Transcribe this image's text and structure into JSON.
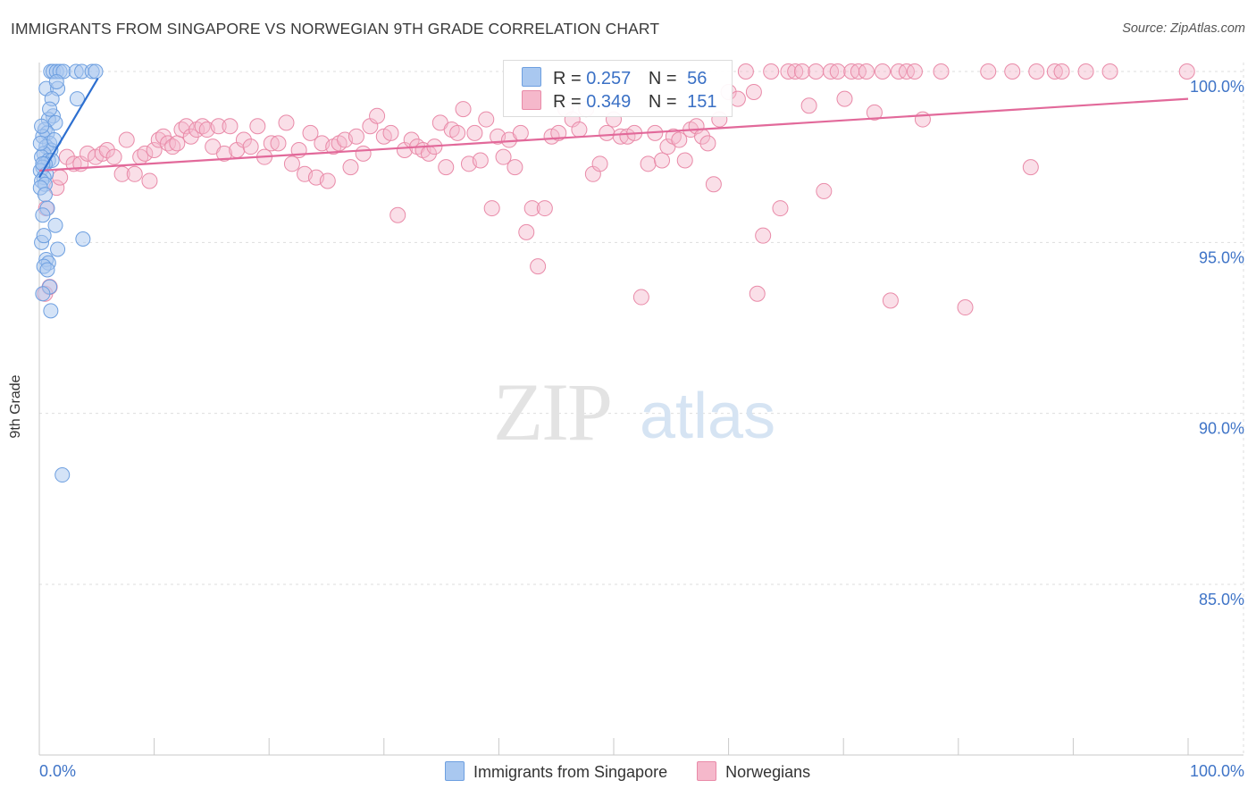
{
  "header": {
    "title": "IMMIGRANTS FROM SINGAPORE VS NORWEGIAN 9TH GRADE CORRELATION CHART",
    "source": "Source: ZipAtlas.com"
  },
  "watermark": {
    "zip": "ZIP",
    "atlas": "atlas"
  },
  "colors": {
    "blue_fill": "#a9c8f0",
    "blue_stroke": "#6d9fe0",
    "blue_line": "#2d6fd0",
    "pink_fill": "#f5b8cb",
    "pink_stroke": "#e98aa8",
    "pink_line": "#e2699a",
    "tick_label": "#3f74c7",
    "grid": "#dddddd"
  },
  "stats_legend": {
    "rows": [
      {
        "r_label": "R =",
        "r_value": "0.257",
        "n_label": "N =",
        "n_value": "56"
      },
      {
        "r_label": "R =",
        "r_value": "0.349",
        "n_label": "N =",
        "n_value": "151"
      }
    ]
  },
  "chart_data": {
    "type": "scatter",
    "title": "IMMIGRANTS FROM SINGAPORE VS NORWEGIAN 9TH GRADE CORRELATION CHART",
    "xlabel": "",
    "ylabel": "9th Grade",
    "xlim": [
      0,
      100
    ],
    "ylim": [
      80.5,
      100.3
    ],
    "x_tick_labels": [
      "0.0%",
      "100.0%"
    ],
    "y_ticks": [
      100,
      95,
      90,
      85
    ],
    "y_tick_labels": [
      "100.0%",
      "95.0%",
      "90.0%",
      "85.0%"
    ],
    "grid": true,
    "legend_position": "bottom",
    "series": [
      {
        "name": "Immigrants from Singapore",
        "color": "#a9c8f0",
        "trend": {
          "x": [
            0.0,
            5.1
          ],
          "y": [
            96.9,
            99.8
          ]
        },
        "points": [
          {
            "x": 1.0,
            "y": 100
          },
          {
            "x": 1.2,
            "y": 100
          },
          {
            "x": 1.5,
            "y": 100
          },
          {
            "x": 1.8,
            "y": 100
          },
          {
            "x": 2.1,
            "y": 100
          },
          {
            "x": 3.2,
            "y": 100
          },
          {
            "x": 3.7,
            "y": 100
          },
          {
            "x": 4.6,
            "y": 100
          },
          {
            "x": 4.9,
            "y": 100
          },
          {
            "x": 0.6,
            "y": 99.5
          },
          {
            "x": 1.6,
            "y": 99.5
          },
          {
            "x": 1.1,
            "y": 99.2
          },
          {
            "x": 3.3,
            "y": 99.2
          },
          {
            "x": 1.2,
            "y": 98.7
          },
          {
            "x": 0.8,
            "y": 98.6
          },
          {
            "x": 1.4,
            "y": 98.5
          },
          {
            "x": 0.5,
            "y": 98.3
          },
          {
            "x": 0.7,
            "y": 98.2
          },
          {
            "x": 0.3,
            "y": 98.1
          },
          {
            "x": 0.9,
            "y": 97.9
          },
          {
            "x": 0.6,
            "y": 97.8
          },
          {
            "x": 1.0,
            "y": 97.7
          },
          {
            "x": 0.4,
            "y": 97.6
          },
          {
            "x": 0.2,
            "y": 97.5
          },
          {
            "x": 0.8,
            "y": 97.4
          },
          {
            "x": 1.1,
            "y": 97.4
          },
          {
            "x": 0.5,
            "y": 97.3
          },
          {
            "x": 0.3,
            "y": 97.2
          },
          {
            "x": 0.1,
            "y": 97.1
          },
          {
            "x": 0.6,
            "y": 97.0
          },
          {
            "x": 0.4,
            "y": 96.9
          },
          {
            "x": 0.2,
            "y": 96.8
          },
          {
            "x": 0.5,
            "y": 96.7
          },
          {
            "x": 0.1,
            "y": 96.6
          },
          {
            "x": 0.7,
            "y": 96.0
          },
          {
            "x": 0.3,
            "y": 95.8
          },
          {
            "x": 1.4,
            "y": 95.5
          },
          {
            "x": 3.8,
            "y": 95.1
          },
          {
            "x": 0.2,
            "y": 95.0
          },
          {
            "x": 1.6,
            "y": 94.8
          },
          {
            "x": 0.6,
            "y": 94.5
          },
          {
            "x": 0.8,
            "y": 94.4
          },
          {
            "x": 0.4,
            "y": 94.3
          },
          {
            "x": 0.7,
            "y": 94.2
          },
          {
            "x": 0.9,
            "y": 93.7
          },
          {
            "x": 0.3,
            "y": 93.5
          },
          {
            "x": 1.0,
            "y": 93.0
          },
          {
            "x": 2.0,
            "y": 88.2
          },
          {
            "x": 0.1,
            "y": 97.9
          },
          {
            "x": 0.9,
            "y": 98.9
          },
          {
            "x": 0.3,
            "y": 97.3
          },
          {
            "x": 1.3,
            "y": 98.0
          },
          {
            "x": 0.5,
            "y": 96.4
          },
          {
            "x": 0.2,
            "y": 98.4
          },
          {
            "x": 0.4,
            "y": 95.2
          },
          {
            "x": 1.5,
            "y": 99.7
          }
        ]
      },
      {
        "name": "Norwegians",
        "color": "#f5b8cb",
        "trend": {
          "x": [
            0.0,
            100.0
          ],
          "y": [
            97.1,
            99.2
          ]
        },
        "points": [
          {
            "x": 0.5,
            "y": 93.5
          },
          {
            "x": 0.9,
            "y": 93.7
          },
          {
            "x": 0.6,
            "y": 96.0
          },
          {
            "x": 1.5,
            "y": 96.6
          },
          {
            "x": 1.8,
            "y": 96.9
          },
          {
            "x": 2.4,
            "y": 97.5
          },
          {
            "x": 3.0,
            "y": 97.3
          },
          {
            "x": 3.6,
            "y": 97.3
          },
          {
            "x": 4.2,
            "y": 97.6
          },
          {
            "x": 4.9,
            "y": 97.5
          },
          {
            "x": 5.5,
            "y": 97.6
          },
          {
            "x": 5.9,
            "y": 97.7
          },
          {
            "x": 6.5,
            "y": 97.5
          },
          {
            "x": 7.2,
            "y": 97.0
          },
          {
            "x": 7.6,
            "y": 98.0
          },
          {
            "x": 8.3,
            "y": 97.0
          },
          {
            "x": 8.8,
            "y": 97.5
          },
          {
            "x": 9.2,
            "y": 97.6
          },
          {
            "x": 9.6,
            "y": 96.8
          },
          {
            "x": 10.0,
            "y": 97.7
          },
          {
            "x": 10.4,
            "y": 98.0
          },
          {
            "x": 10.8,
            "y": 98.1
          },
          {
            "x": 11.2,
            "y": 97.9
          },
          {
            "x": 11.6,
            "y": 97.8
          },
          {
            "x": 12.0,
            "y": 97.9
          },
          {
            "x": 12.4,
            "y": 98.3
          },
          {
            "x": 12.8,
            "y": 98.4
          },
          {
            "x": 13.2,
            "y": 98.1
          },
          {
            "x": 13.7,
            "y": 98.3
          },
          {
            "x": 14.2,
            "y": 98.4
          },
          {
            "x": 14.6,
            "y": 98.3
          },
          {
            "x": 15.1,
            "y": 97.8
          },
          {
            "x": 15.6,
            "y": 98.4
          },
          {
            "x": 16.1,
            "y": 97.6
          },
          {
            "x": 16.6,
            "y": 98.4
          },
          {
            "x": 17.2,
            "y": 97.7
          },
          {
            "x": 17.8,
            "y": 98.0
          },
          {
            "x": 18.4,
            "y": 97.8
          },
          {
            "x": 19.0,
            "y": 98.4
          },
          {
            "x": 19.6,
            "y": 97.5
          },
          {
            "x": 20.2,
            "y": 97.9
          },
          {
            "x": 20.8,
            "y": 97.9
          },
          {
            "x": 21.5,
            "y": 98.5
          },
          {
            "x": 22.0,
            "y": 97.3
          },
          {
            "x": 22.6,
            "y": 97.7
          },
          {
            "x": 23.1,
            "y": 97.0
          },
          {
            "x": 23.6,
            "y": 98.2
          },
          {
            "x": 24.1,
            "y": 96.9
          },
          {
            "x": 24.6,
            "y": 97.9
          },
          {
            "x": 25.1,
            "y": 96.8
          },
          {
            "x": 25.6,
            "y": 97.8
          },
          {
            "x": 26.1,
            "y": 97.9
          },
          {
            "x": 26.6,
            "y": 98.0
          },
          {
            "x": 27.1,
            "y": 97.2
          },
          {
            "x": 27.6,
            "y": 98.1
          },
          {
            "x": 28.2,
            "y": 97.6
          },
          {
            "x": 28.8,
            "y": 98.4
          },
          {
            "x": 29.4,
            "y": 98.7
          },
          {
            "x": 30.0,
            "y": 98.1
          },
          {
            "x": 30.6,
            "y": 98.2
          },
          {
            "x": 31.2,
            "y": 95.8
          },
          {
            "x": 31.8,
            "y": 97.7
          },
          {
            "x": 32.4,
            "y": 98.0
          },
          {
            "x": 32.9,
            "y": 97.8
          },
          {
            "x": 33.4,
            "y": 97.7
          },
          {
            "x": 33.9,
            "y": 97.6
          },
          {
            "x": 34.4,
            "y": 97.8
          },
          {
            "x": 34.9,
            "y": 98.5
          },
          {
            "x": 35.4,
            "y": 97.2
          },
          {
            "x": 35.9,
            "y": 98.3
          },
          {
            "x": 36.4,
            "y": 98.2
          },
          {
            "x": 36.9,
            "y": 98.9
          },
          {
            "x": 37.4,
            "y": 97.3
          },
          {
            "x": 37.9,
            "y": 98.2
          },
          {
            "x": 38.4,
            "y": 97.4
          },
          {
            "x": 38.9,
            "y": 98.6
          },
          {
            "x": 39.4,
            "y": 96.0
          },
          {
            "x": 39.9,
            "y": 98.1
          },
          {
            "x": 40.4,
            "y": 97.5
          },
          {
            "x": 40.9,
            "y": 98.0
          },
          {
            "x": 41.4,
            "y": 97.2
          },
          {
            "x": 41.9,
            "y": 98.2
          },
          {
            "x": 42.4,
            "y": 95.3
          },
          {
            "x": 42.9,
            "y": 96.0
          },
          {
            "x": 43.4,
            "y": 94.3
          },
          {
            "x": 44.0,
            "y": 96.0
          },
          {
            "x": 44.6,
            "y": 98.1
          },
          {
            "x": 45.2,
            "y": 98.2
          },
          {
            "x": 45.8,
            "y": 98.9
          },
          {
            "x": 46.4,
            "y": 98.6
          },
          {
            "x": 47.0,
            "y": 98.3
          },
          {
            "x": 47.6,
            "y": 98.9
          },
          {
            "x": 48.2,
            "y": 97.0
          },
          {
            "x": 48.8,
            "y": 97.3
          },
          {
            "x": 49.4,
            "y": 98.2
          },
          {
            "x": 50.0,
            "y": 98.6
          },
          {
            "x": 50.6,
            "y": 98.1
          },
          {
            "x": 51.2,
            "y": 98.1
          },
          {
            "x": 51.8,
            "y": 98.2
          },
          {
            "x": 52.4,
            "y": 93.4
          },
          {
            "x": 53.0,
            "y": 97.3
          },
          {
            "x": 53.6,
            "y": 98.2
          },
          {
            "x": 54.2,
            "y": 97.4
          },
          {
            "x": 54.7,
            "y": 97.8
          },
          {
            "x": 55.2,
            "y": 98.1
          },
          {
            "x": 55.7,
            "y": 98.0
          },
          {
            "x": 56.2,
            "y": 97.4
          },
          {
            "x": 56.7,
            "y": 98.3
          },
          {
            "x": 57.2,
            "y": 98.4
          },
          {
            "x": 57.7,
            "y": 98.1
          },
          {
            "x": 58.2,
            "y": 97.9
          },
          {
            "x": 58.7,
            "y": 96.7
          },
          {
            "x": 59.2,
            "y": 98.6
          },
          {
            "x": 60.0,
            "y": 99.4
          },
          {
            "x": 60.8,
            "y": 99.2
          },
          {
            "x": 61.5,
            "y": 100
          },
          {
            "x": 62.5,
            "y": 93.5
          },
          {
            "x": 63.0,
            "y": 95.2
          },
          {
            "x": 63.7,
            "y": 100
          },
          {
            "x": 64.5,
            "y": 96.0
          },
          {
            "x": 65.2,
            "y": 100
          },
          {
            "x": 65.8,
            "y": 100
          },
          {
            "x": 66.4,
            "y": 100
          },
          {
            "x": 67.0,
            "y": 99.0
          },
          {
            "x": 67.6,
            "y": 100
          },
          {
            "x": 68.3,
            "y": 96.5
          },
          {
            "x": 68.9,
            "y": 100
          },
          {
            "x": 69.5,
            "y": 100
          },
          {
            "x": 70.1,
            "y": 99.2
          },
          {
            "x": 70.7,
            "y": 100
          },
          {
            "x": 71.3,
            "y": 100
          },
          {
            "x": 72.0,
            "y": 100
          },
          {
            "x": 72.7,
            "y": 98.8
          },
          {
            "x": 73.4,
            "y": 100
          },
          {
            "x": 74.1,
            "y": 93.3
          },
          {
            "x": 74.8,
            "y": 100
          },
          {
            "x": 75.5,
            "y": 100
          },
          {
            "x": 76.2,
            "y": 100
          },
          {
            "x": 76.9,
            "y": 98.6
          },
          {
            "x": 78.5,
            "y": 100
          },
          {
            "x": 80.6,
            "y": 93.1
          },
          {
            "x": 82.6,
            "y": 100
          },
          {
            "x": 84.7,
            "y": 100
          },
          {
            "x": 86.3,
            "y": 97.2
          },
          {
            "x": 86.8,
            "y": 100
          },
          {
            "x": 88.4,
            "y": 100
          },
          {
            "x": 89.0,
            "y": 100
          },
          {
            "x": 91.1,
            "y": 100
          },
          {
            "x": 93.2,
            "y": 100
          },
          {
            "x": 99.9,
            "y": 100
          },
          {
            "x": 62.2,
            "y": 99.4
          }
        ]
      }
    ]
  },
  "bottom_legend": {
    "items": [
      {
        "label": "Immigrants from Singapore"
      },
      {
        "label": "Norwegians"
      }
    ]
  }
}
